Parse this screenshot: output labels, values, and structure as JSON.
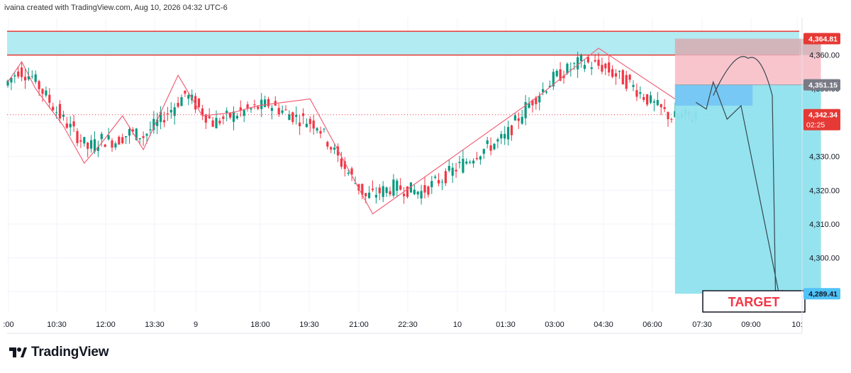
{
  "header": {
    "attribution": "ivaina created with TradingView.com, Aug 10, 2026 04:32 UTC-6"
  },
  "brand": {
    "name": "TradingView",
    "logo_icon": "tradingview-logo-icon"
  },
  "colors": {
    "up": "#089981",
    "down": "#f23645",
    "zone": "#b2ebf2",
    "stop": "#f8bbc4",
    "target_fill": "#8ee2ee",
    "pattern_line": "#f06278",
    "level_line": "#e53935",
    "axis_text": "#131722",
    "grid": "#f0f3fa"
  },
  "chart_data": {
    "type": "candlestick",
    "ylim": [
      4284,
      4371
    ],
    "y_ticks": [
      4360,
      4350,
      4340,
      4330,
      4320,
      4310,
      4300,
      4290
    ],
    "y_tick_labels": [
      "4,360.00",
      "4,350.00",
      "4,340.00",
      "4,330.00",
      "4,320.00",
      "4,310.00",
      "4,300.00",
      "4,290.00"
    ],
    "x_tick_labels": [
      ":00",
      "10:30",
      "12:00",
      "13:30",
      "9",
      "18:00",
      "19:30",
      "21:00",
      "22:30",
      "10",
      "01:30",
      "03:00",
      "04:30",
      "06:00",
      "07:30",
      "09:00",
      "10:"
    ],
    "price_labels": [
      {
        "value": 4364.81,
        "text": "4,364.81",
        "style": "red"
      },
      {
        "value": 4351.15,
        "text": "4,351.15",
        "style": "gray"
      },
      {
        "value": 4342.34,
        "text": "4,342.34",
        "sub": "02:25",
        "style": "red"
      },
      {
        "value": 4289.41,
        "text": "4,289.41",
        "style": "blue"
      }
    ],
    "resistance_zone": [
      4359.96,
      4367.0
    ],
    "horizontal_lines": [
      4359.96,
      4367.0
    ],
    "current_price": 4342.34,
    "position": {
      "entry": 4351.15,
      "stop": 4364.81,
      "target": 4289.41,
      "entry_bar": 192,
      "end_bar": 234
    },
    "target_label": "TARGET",
    "candles_approx": [
      {
        "i": 0,
        "o": 4348,
        "c": 4354
      },
      {
        "i": 4,
        "o": 4354,
        "c": 4357
      },
      {
        "i": 8,
        "o": 4356,
        "c": 4351
      },
      {
        "i": 16,
        "o": 4346,
        "c": 4338
      },
      {
        "i": 24,
        "o": 4336,
        "c": 4329
      },
      {
        "i": 28,
        "o": 4333,
        "c": 4337
      },
      {
        "i": 32,
        "o": 4337,
        "c": 4332
      },
      {
        "i": 36,
        "o": 4334,
        "c": 4340
      },
      {
        "i": 40,
        "o": 4338,
        "c": 4334
      },
      {
        "i": 48,
        "o": 4339,
        "c": 4349
      },
      {
        "i": 52,
        "o": 4351,
        "c": 4346
      },
      {
        "i": 60,
        "o": 4342,
        "c": 4338
      },
      {
        "i": 68,
        "o": 4341,
        "c": 4345
      },
      {
        "i": 76,
        "o": 4344,
        "c": 4347
      },
      {
        "i": 84,
        "o": 4344,
        "c": 4339
      },
      {
        "i": 90,
        "o": 4343,
        "c": 4336
      },
      {
        "i": 96,
        "o": 4334,
        "c": 4325
      },
      {
        "i": 104,
        "o": 4320,
        "c": 4316
      },
      {
        "i": 112,
        "o": 4318,
        "c": 4324
      },
      {
        "i": 120,
        "o": 4322,
        "c": 4317
      },
      {
        "i": 128,
        "o": 4323,
        "c": 4327
      },
      {
        "i": 136,
        "o": 4326,
        "c": 4336
      },
      {
        "i": 144,
        "o": 4333,
        "c": 4338
      },
      {
        "i": 150,
        "o": 4340,
        "c": 4349
      },
      {
        "i": 158,
        "o": 4350,
        "c": 4356
      },
      {
        "i": 166,
        "o": 4356,
        "c": 4360
      },
      {
        "i": 172,
        "o": 4358,
        "c": 4355
      },
      {
        "i": 180,
        "o": 4354,
        "c": 4349
      },
      {
        "i": 186,
        "o": 4348,
        "c": 4344
      },
      {
        "i": 192,
        "o": 4343,
        "c": 4340
      },
      {
        "i": 198,
        "o": 4341,
        "c": 4343
      }
    ],
    "pattern_lines": [
      [
        [
          0,
          4352
        ],
        [
          4,
          4358
        ],
        [
          8,
          4350
        ],
        [
          16,
          4339
        ],
        [
          22,
          4328
        ],
        [
          27,
          4334
        ],
        [
          33,
          4342
        ],
        [
          39,
          4332
        ],
        [
          49,
          4354
        ],
        [
          56,
          4342
        ],
        [
          65,
          4343
        ],
        [
          72,
          4345
        ],
        [
          87,
          4347
        ],
        [
          105,
          4313
        ],
        [
          153,
          4348
        ],
        [
          170,
          4362
        ],
        [
          192,
          4347
        ]
      ]
    ],
    "projection_path": [
      [
        198,
        4346
      ],
      [
        201,
        4344
      ],
      [
        203,
        4352
      ],
      [
        207,
        4341
      ],
      [
        211,
        4345
      ],
      [
        222,
        4289
      ]
    ],
    "projection_curve": [
      [
        203,
        4348
      ],
      [
        213,
        4359
      ],
      [
        220,
        4348
      ],
      [
        221,
        4285
      ]
    ]
  }
}
